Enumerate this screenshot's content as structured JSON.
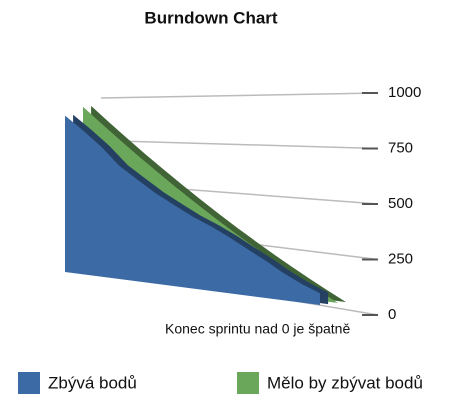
{
  "chart_data": {
    "type": "area3d",
    "title": "Burndown Chart",
    "annotation": "Konec sprintu nad 0 je špatně",
    "series": [
      {
        "name": "Zbývá bodů",
        "color": "#3c6aa5",
        "values": [
          920,
          860,
          790,
          700,
          640,
          580,
          530,
          480,
          440,
          390,
          330,
          270,
          200,
          140,
          90
        ]
      },
      {
        "name": "Mělo by zbývat bodů",
        "color": "#6aa75a",
        "values": [
          960,
          891,
          823,
          754,
          686,
          617,
          549,
          480,
          411,
          343,
          274,
          206,
          137,
          69,
          0
        ]
      }
    ],
    "ylim": [
      0,
      1000
    ],
    "yticks": [
      0,
      250,
      500,
      750,
      1000
    ],
    "grid": true
  }
}
